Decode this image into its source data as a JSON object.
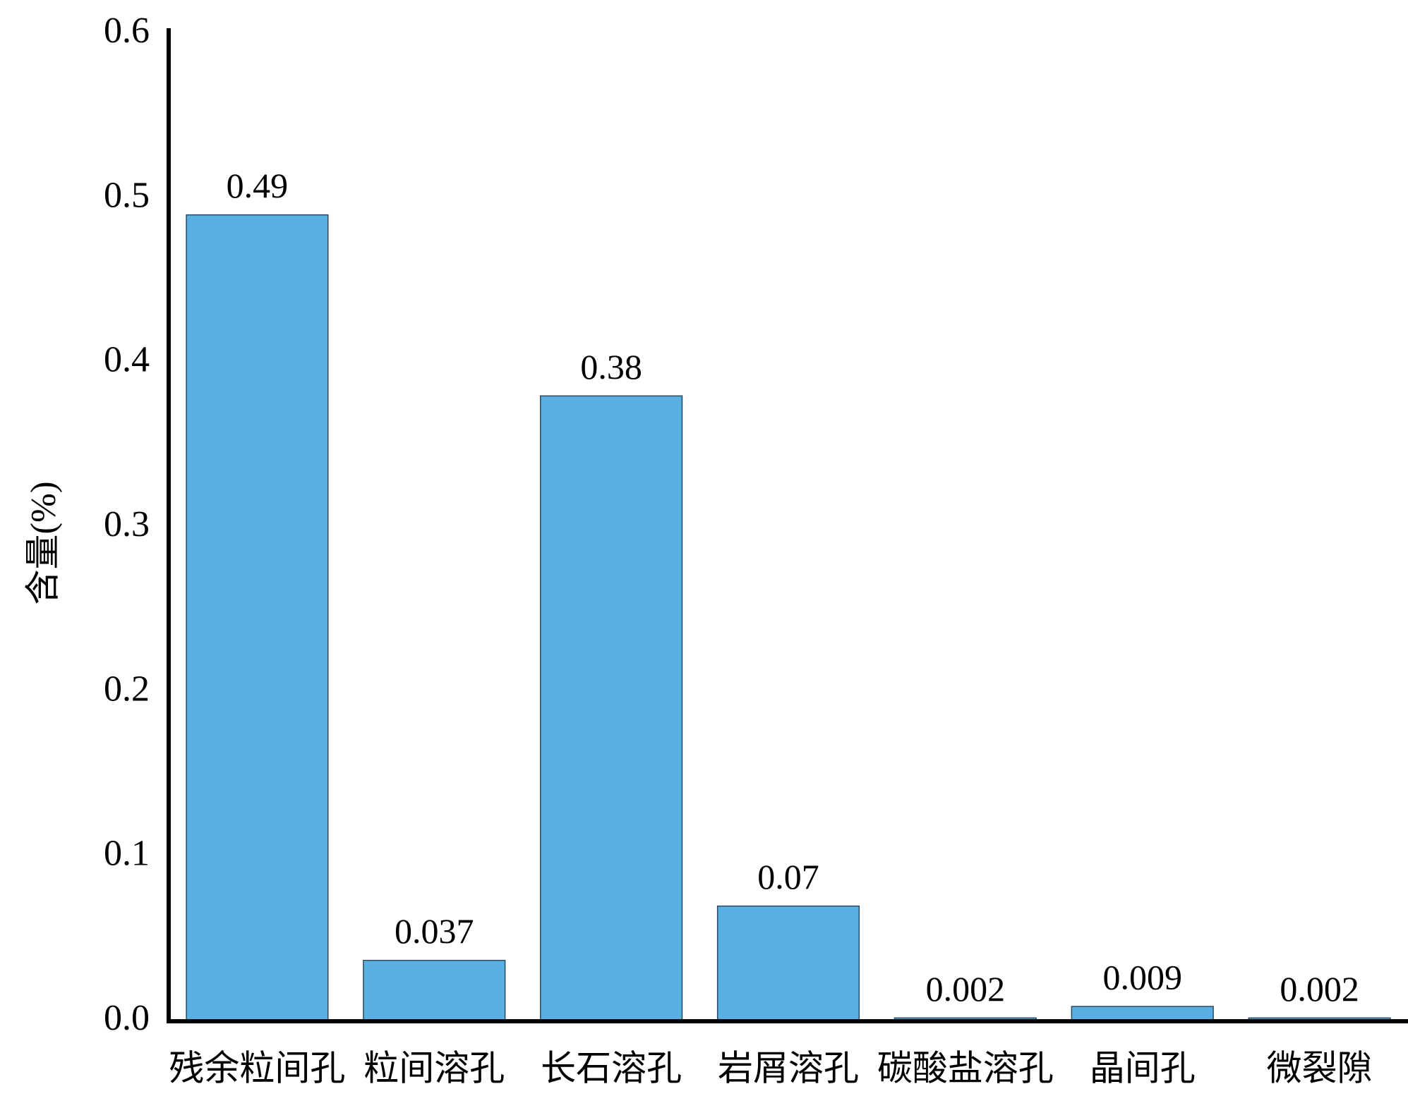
{
  "chart_data": {
    "type": "bar",
    "y_label": "含量(%)",
    "categories": [
      "残余粒间孔",
      "粒间溶孔",
      "长石溶孔",
      "岩屑溶孔",
      "碳酸盐溶孔",
      "晶间孔",
      "微裂隙"
    ],
    "values": [
      0.49,
      0.037,
      0.38,
      0.07,
      0.002,
      0.009,
      0.002
    ],
    "color": "#5ab0e2",
    "ylim": [
      0,
      0.6
    ],
    "yticks": [
      {
        "value": 0,
        "label": "0.0"
      },
      0.1,
      0.2,
      0.3,
      0.4,
      0.5,
      0.6
    ],
    "grid": false
  }
}
